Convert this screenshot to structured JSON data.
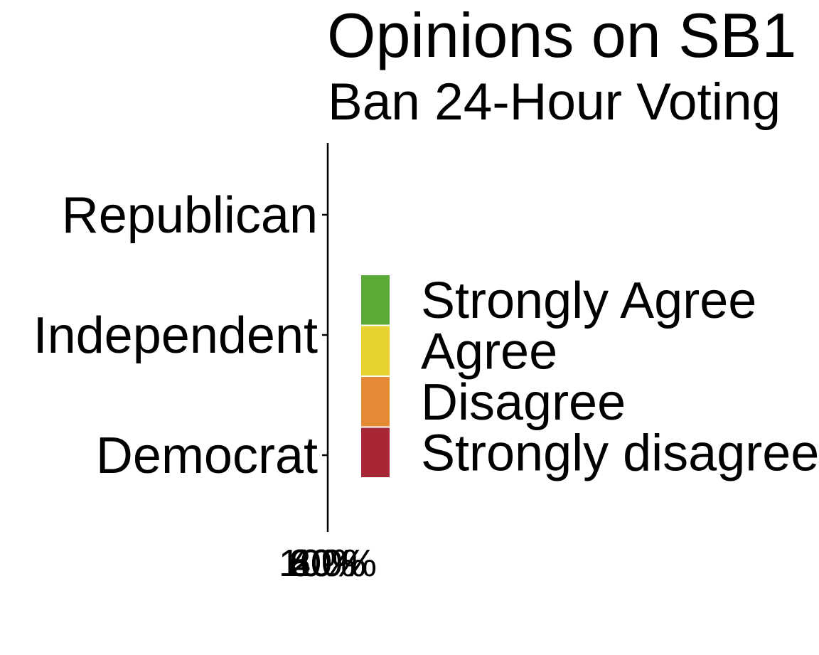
{
  "chart_data": {
    "type": "bar",
    "orientation": "horizontal",
    "stacked": true,
    "title": "Opinions on SB1",
    "subtitle": "Ban 24-Hour Voting",
    "categories": [
      "Republican",
      "Independent",
      "Democrat"
    ],
    "x_tick_labels": [
      "0%",
      "20%",
      "40%",
      "60%",
      "80%",
      "100%"
    ],
    "xlim": [
      0,
      100
    ],
    "series": [
      {
        "name": "Strongly Agree",
        "color": "#5BAA37",
        "values": [
          null,
          null,
          null
        ]
      },
      {
        "name": "Agree",
        "color": "#E8D230",
        "values": [
          null,
          null,
          null
        ]
      },
      {
        "name": "Disagree",
        "color": "#E68A35",
        "values": [
          null,
          null,
          null
        ]
      },
      {
        "name": "Strongly disagree",
        "color": "#A92636",
        "values": [
          null,
          null,
          null
        ]
      }
    ],
    "legend_position": "right",
    "grid": false
  }
}
